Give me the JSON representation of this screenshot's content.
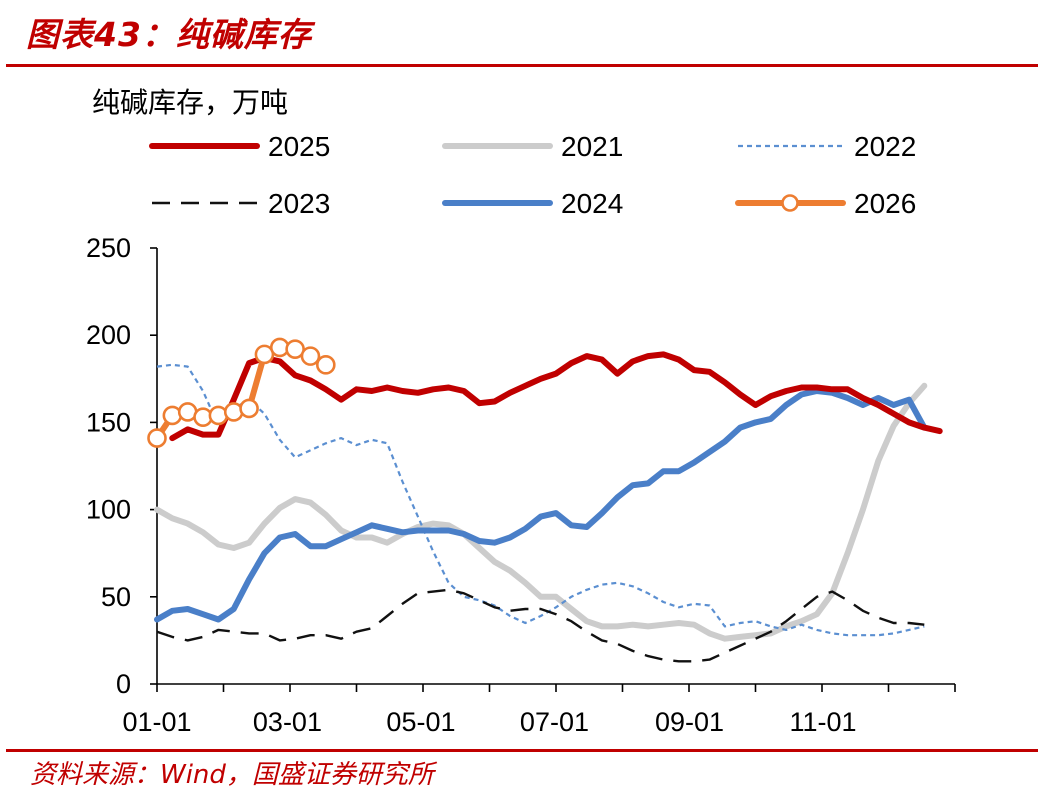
{
  "figure": {
    "title": "图表43：纯碱库存",
    "source": "资料来源：Wind，国盛证券研究所"
  },
  "chart_data": {
    "type": "line",
    "title": "纯碱库存",
    "ylabel": "纯碱库存，万吨",
    "xlabel": "",
    "ylim": [
      0,
      250
    ],
    "yticks": [
      0,
      50,
      100,
      150,
      200,
      250
    ],
    "xlim": [
      1,
      53
    ],
    "xticks": [
      {
        "label": "01-01",
        "week": 1
      },
      {
        "label": "03-01",
        "week": 9.5
      },
      {
        "label": "05-01",
        "week": 18.2
      },
      {
        "label": "07-01",
        "week": 26.9
      },
      {
        "label": "09-01",
        "week": 35.7
      },
      {
        "label": "11-01",
        "week": 44.4
      }
    ],
    "legend_position": "top",
    "series": [
      {
        "name": "2025",
        "color": "#c00000",
        "style": "solid-thick",
        "start_week": 2,
        "values": [
          141,
          146,
          143,
          143,
          163,
          184,
          187,
          185,
          177,
          174,
          169,
          163,
          169,
          168,
          170,
          168,
          167,
          169,
          170,
          168,
          161,
          162,
          167,
          171,
          175,
          178,
          184,
          188,
          186,
          178,
          185,
          188,
          189,
          186,
          180,
          179,
          173,
          166,
          160,
          165,
          168,
          170,
          170,
          169,
          169,
          164,
          160,
          155,
          150,
          147,
          145
        ]
      },
      {
        "name": "2021",
        "color": "#cccccc",
        "style": "solid-thick",
        "start_week": 1,
        "values": [
          100,
          95,
          92,
          87,
          80,
          78,
          81,
          92,
          101,
          106,
          104,
          97,
          88,
          84,
          84,
          81,
          86,
          90,
          92,
          91,
          86,
          78,
          70,
          65,
          58,
          50,
          50,
          43,
          36,
          33,
          33,
          34,
          33,
          34,
          35,
          34,
          29,
          26,
          27,
          28,
          29,
          33,
          36,
          40,
          52,
          75,
          100,
          128,
          148,
          161,
          171
        ]
      },
      {
        "name": "2022",
        "color": "#5b8fd1",
        "style": "dotted-thin",
        "start_week": 1,
        "values": [
          182,
          183,
          182,
          168,
          148,
          158,
          163,
          155,
          140,
          130,
          134,
          138,
          141,
          137,
          140,
          138,
          116,
          96,
          76,
          58,
          50,
          48,
          45,
          39,
          35,
          39,
          44,
          50,
          54,
          57,
          58,
          56,
          52,
          47,
          44,
          46,
          45,
          33,
          35,
          36,
          33,
          31,
          34,
          31,
          29,
          28,
          28,
          28,
          29,
          31,
          33
        ]
      },
      {
        "name": "2023",
        "color": "#111111",
        "style": "dashed",
        "start_week": 1,
        "values": [
          30,
          27,
          25,
          27,
          31,
          30,
          29,
          29,
          25,
          26,
          28,
          28,
          26,
          30,
          32,
          39,
          46,
          52,
          53,
          54,
          52,
          48,
          44,
          42,
          43,
          43,
          40,
          36,
          30,
          25,
          23,
          19,
          16,
          14,
          13,
          13,
          14,
          18,
          22,
          26,
          30,
          36,
          43,
          50,
          53,
          48,
          42,
          38,
          35,
          35,
          34
        ]
      },
      {
        "name": "2024",
        "color": "#4a7fc8",
        "style": "solid-thick",
        "start_week": 1,
        "values": [
          37,
          42,
          43,
          40,
          37,
          43,
          60,
          75,
          84,
          86,
          79,
          79,
          83,
          87,
          91,
          89,
          87,
          88,
          88,
          88,
          86,
          82,
          81,
          84,
          89,
          96,
          98,
          91,
          90,
          98,
          107,
          114,
          115,
          122,
          122,
          127,
          133,
          139,
          147,
          150,
          152,
          160,
          166,
          168,
          167,
          164,
          160,
          164,
          160,
          163,
          147
        ]
      },
      {
        "name": "2026",
        "color": "#ed7d31",
        "style": "solid-markers",
        "start_week": 1,
        "values": [
          141,
          154,
          156,
          153,
          154,
          156,
          158,
          189,
          193,
          192,
          188,
          183
        ]
      }
    ]
  }
}
